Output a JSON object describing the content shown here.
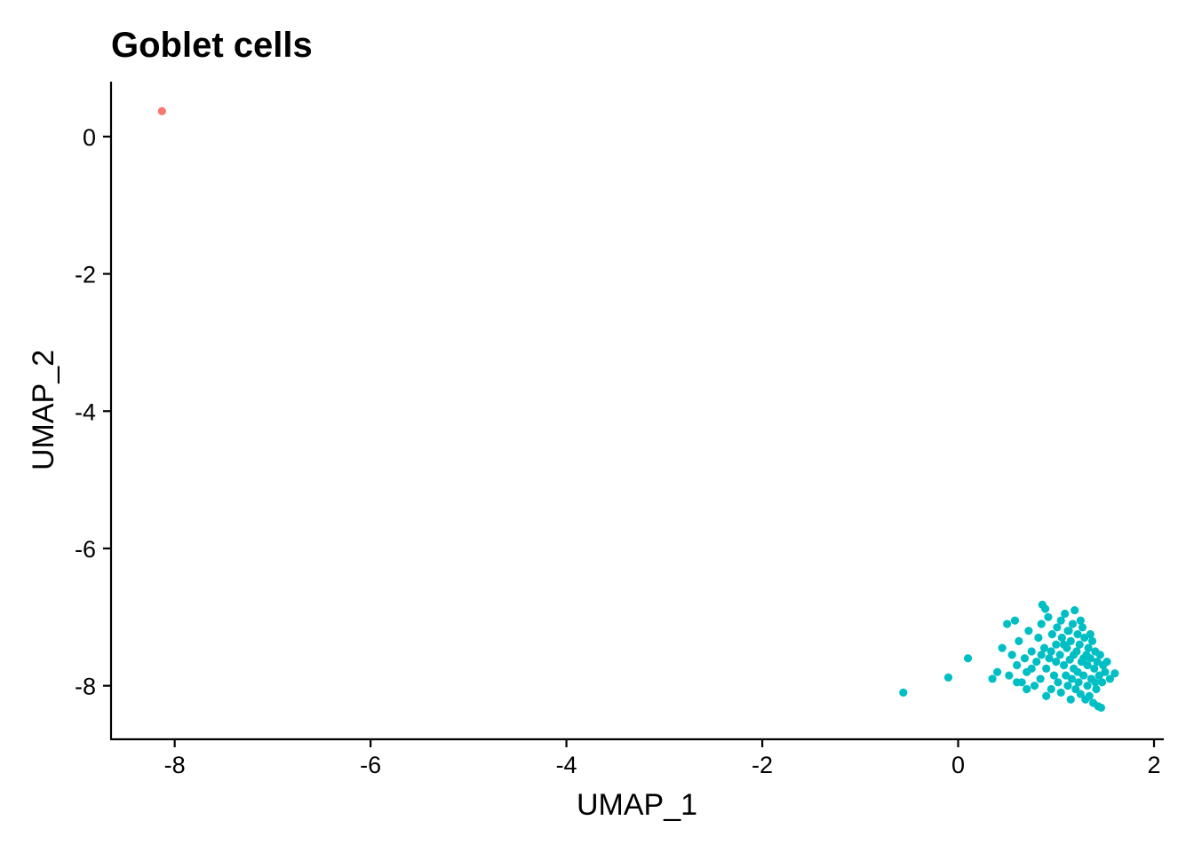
{
  "chart_data": {
    "type": "scatter",
    "title": "Goblet cells",
    "xlabel": "UMAP_1",
    "ylabel": "UMAP_2",
    "xlim": [
      -8.65,
      2.1
    ],
    "ylim": [
      -8.78,
      0.8
    ],
    "xticks": [
      -8,
      -6,
      -4,
      -2,
      0,
      2
    ],
    "yticks": [
      0,
      -2,
      -4,
      -6,
      -8
    ],
    "grid": false,
    "legend": "none",
    "series": [
      {
        "color": "#F8766D",
        "points": [
          [
            -8.13,
            0.37
          ]
        ]
      },
      {
        "color": "#00BFC4",
        "points": [
          [
            -0.56,
            -8.1
          ],
          [
            -0.1,
            -7.88
          ],
          [
            0.1,
            -7.6
          ],
          [
            0.35,
            -7.9
          ],
          [
            0.4,
            -7.8
          ],
          [
            0.45,
            -7.45
          ],
          [
            0.5,
            -7.1
          ],
          [
            0.55,
            -7.55
          ],
          [
            0.52,
            -7.85
          ],
          [
            0.58,
            -7.05
          ],
          [
            0.6,
            -7.7
          ],
          [
            0.62,
            -7.35
          ],
          [
            0.65,
            -7.95
          ],
          [
            0.68,
            -7.6
          ],
          [
            0.7,
            -7.8
          ],
          [
            0.72,
            -7.2
          ],
          [
            0.75,
            -7.5
          ],
          [
            0.78,
            -8.0
          ],
          [
            0.8,
            -7.65
          ],
          [
            0.82,
            -7.3
          ],
          [
            0.84,
            -7.9
          ],
          [
            0.85,
            -7.1
          ],
          [
            0.86,
            -6.82
          ],
          [
            0.88,
            -7.45
          ],
          [
            0.89,
            -6.88
          ],
          [
            0.9,
            -7.75
          ],
          [
            0.92,
            -7.0
          ],
          [
            0.93,
            -7.6
          ],
          [
            0.95,
            -8.05
          ],
          [
            0.96,
            -7.25
          ],
          [
            0.98,
            -7.85
          ],
          [
            1.0,
            -7.4
          ],
          [
            1.01,
            -7.15
          ],
          [
            1.02,
            -7.95
          ],
          [
            1.04,
            -7.55
          ],
          [
            1.05,
            -8.1
          ],
          [
            1.06,
            -7.3
          ],
          [
            1.08,
            -7.7
          ],
          [
            1.09,
            -6.95
          ],
          [
            1.1,
            -7.85
          ],
          [
            1.11,
            -7.45
          ],
          [
            1.12,
            -8.0
          ],
          [
            1.13,
            -7.2
          ],
          [
            1.14,
            -7.62
          ],
          [
            1.15,
            -7.35
          ],
          [
            1.16,
            -7.9
          ],
          [
            1.17,
            -7.1
          ],
          [
            1.18,
            -7.75
          ],
          [
            1.19,
            -6.9
          ],
          [
            1.2,
            -8.05
          ],
          [
            1.21,
            -7.5
          ],
          [
            1.22,
            -7.25
          ],
          [
            1.23,
            -7.95
          ],
          [
            1.24,
            -7.4
          ],
          [
            1.25,
            -8.12
          ],
          [
            1.26,
            -7.65
          ],
          [
            1.27,
            -7.15
          ],
          [
            1.28,
            -7.85
          ],
          [
            1.29,
            -7.3
          ],
          [
            1.3,
            -8.2
          ],
          [
            1.31,
            -7.55
          ],
          [
            1.32,
            -7.7
          ],
          [
            1.33,
            -7.45
          ],
          [
            1.34,
            -8.15
          ],
          [
            1.35,
            -7.6
          ],
          [
            1.36,
            -7.9
          ],
          [
            1.37,
            -7.35
          ],
          [
            1.38,
            -8.25
          ],
          [
            1.39,
            -7.75
          ],
          [
            1.4,
            -7.5
          ],
          [
            1.41,
            -8.05
          ],
          [
            1.42,
            -7.65
          ],
          [
            1.43,
            -8.3
          ],
          [
            1.44,
            -7.85
          ],
          [
            1.45,
            -7.55
          ],
          [
            1.46,
            -8.32
          ],
          [
            1.47,
            -7.95
          ],
          [
            1.48,
            -7.7
          ],
          [
            1.5,
            -7.8
          ],
          [
            1.52,
            -7.65
          ],
          [
            1.55,
            -7.9
          ],
          [
            1.6,
            -7.82
          ],
          [
            0.7,
            -8.05
          ],
          [
            0.9,
            -8.15
          ],
          [
            1.05,
            -7.05
          ],
          [
            1.15,
            -8.2
          ],
          [
            1.25,
            -7.05
          ],
          [
            0.95,
            -7.5
          ],
          [
            1.0,
            -7.65
          ],
          [
            1.08,
            -7.4
          ],
          [
            1.18,
            -7.55
          ],
          [
            1.22,
            -7.8
          ],
          [
            1.28,
            -7.6
          ],
          [
            1.35,
            -7.25
          ],
          [
            1.4,
            -7.95
          ],
          [
            0.6,
            -7.95
          ],
          [
            0.75,
            -7.75
          ],
          [
            0.85,
            -7.55
          ],
          [
            1.12,
            -7.2
          ],
          [
            1.32,
            -8.0
          ]
        ]
      }
    ]
  }
}
